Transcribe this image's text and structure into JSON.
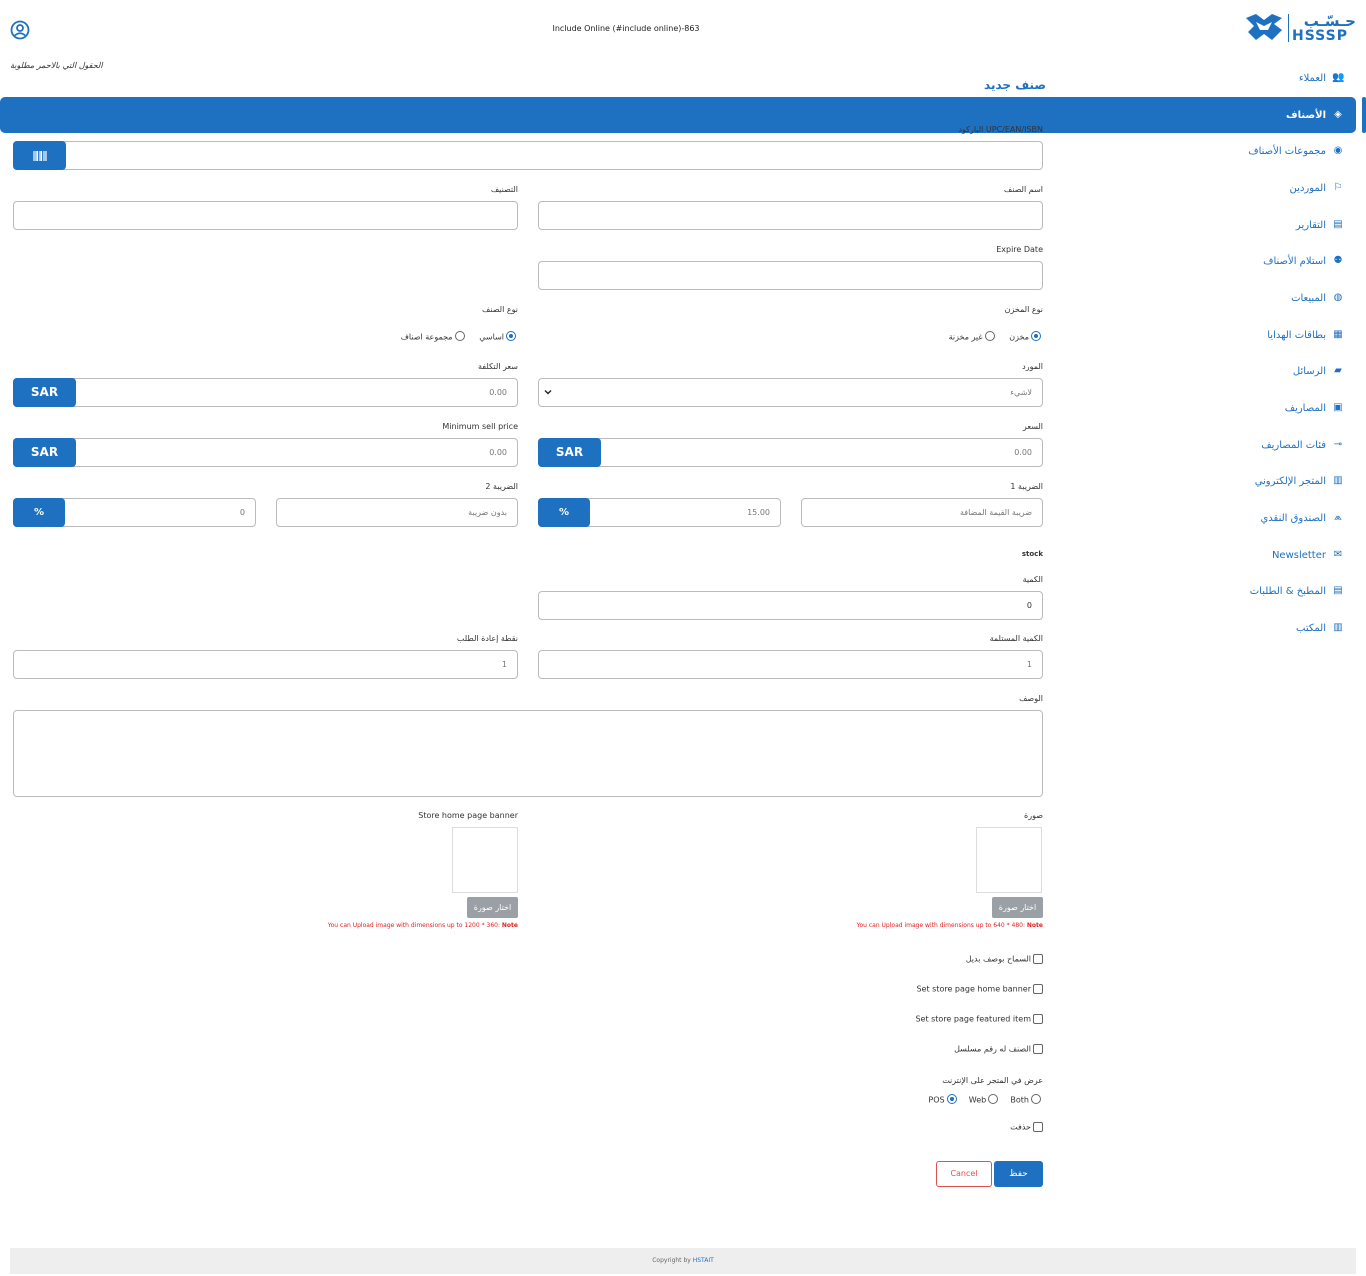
{
  "header": {
    "title": "Include Online (#include online)-863",
    "required_note": "الحقول التي بالاحمر مطلوبة",
    "logo_ar": "حـسّـب",
    "logo_en": "HSSSP"
  },
  "sidebar": {
    "items": [
      {
        "label": "العملاء",
        "icon": "👥"
      },
      {
        "label": "الأصناف",
        "icon": "◈",
        "active": true
      },
      {
        "label": "مجموعات الأصناف",
        "icon": "◉"
      },
      {
        "label": "الموردين",
        "icon": "⚐"
      },
      {
        "label": "التقارير",
        "icon": "▤"
      },
      {
        "label": "استلام الأصناف",
        "icon": "⚉"
      },
      {
        "label": "المبيعات",
        "icon": "◍"
      },
      {
        "label": "بطاقات الهدايا",
        "icon": "▦"
      },
      {
        "label": "الرسائل",
        "icon": "▰"
      },
      {
        "label": "المصاريف",
        "icon": "▣"
      },
      {
        "label": "فئات المصاريف",
        "icon": "⊸"
      },
      {
        "label": "المتجر الإلكتروني",
        "icon": "▥"
      },
      {
        "label": "الصندوق النقدي",
        "icon": "⩕"
      },
      {
        "label": "Newsletter",
        "icon": "✉"
      },
      {
        "label": "المطبخ & الطلبات",
        "icon": "▤"
      },
      {
        "label": "المكتب",
        "icon": "▥"
      }
    ]
  },
  "form": {
    "title": "صنف جديد",
    "barcode_label": "الباركود UPC/EAN/ISBN",
    "name_label": "اسم الصنف",
    "category_label": "التصنيف",
    "expire_label": "Expire Date",
    "store_type_label": "نوع المخزن",
    "store_type_opt1": "مخزن",
    "store_type_opt2": "غير مخزنة",
    "item_type_label": "نوع الصنف",
    "item_type_opt1": "اساسي",
    "item_type_opt2": "مجموعة اصناف",
    "supplier_label": "المورد",
    "supplier_value": "لاشيء",
    "cost_label": "سعر التكلفة",
    "cost_value": "0.00",
    "price_label": "السعر",
    "price_value": "0.00",
    "min_price_label": "Minimum sell price",
    "min_price_value": "0.00",
    "currency": "SAR",
    "tax1_label": "الضريبة 1",
    "tax1_name": "ضريبة القيمة المضافة",
    "tax1_value": "15.00",
    "tax2_label": "الضريبة 2",
    "tax2_name": "بدون ضريبة",
    "tax2_value": "0",
    "percent": "%",
    "stock_label": "stock",
    "qty_label": "الكمية",
    "qty_value": "0",
    "received_qty_label": "الكمية المستلمة",
    "received_qty_value": "1",
    "reorder_label": "نقطة إعادة الطلب",
    "reorder_value": "1",
    "desc_label": "الوصف",
    "image_label": "صورة",
    "banner_label": "Store home page banner",
    "pick_image": "اختار صورة",
    "note_image_text": "You can Upload image with dimensions up to 640 * 480: ",
    "note_banner_text": "You can Upload image with dimensions up to 1200 * 360: ",
    "note_word": "Note",
    "chk_alt_desc": "السماح بوصف بديل",
    "chk_home_banner": "Set store page home banner",
    "chk_featured": "Set store page featured item",
    "chk_serial": "الصنف له رقم مسلسل",
    "online_label": "عرض في المتجر على الإنترنت",
    "online_pos": "POS",
    "online_web": "Web",
    "online_both": "Both",
    "chk_deleted": "حذفت",
    "save": "حفظ",
    "cancel": "Cancel"
  },
  "footer": {
    "copyright": "Copyright by ",
    "brand": "HSTAIT"
  },
  "colors": {
    "accent": "#1e70c1",
    "danger": "#e02020"
  }
}
